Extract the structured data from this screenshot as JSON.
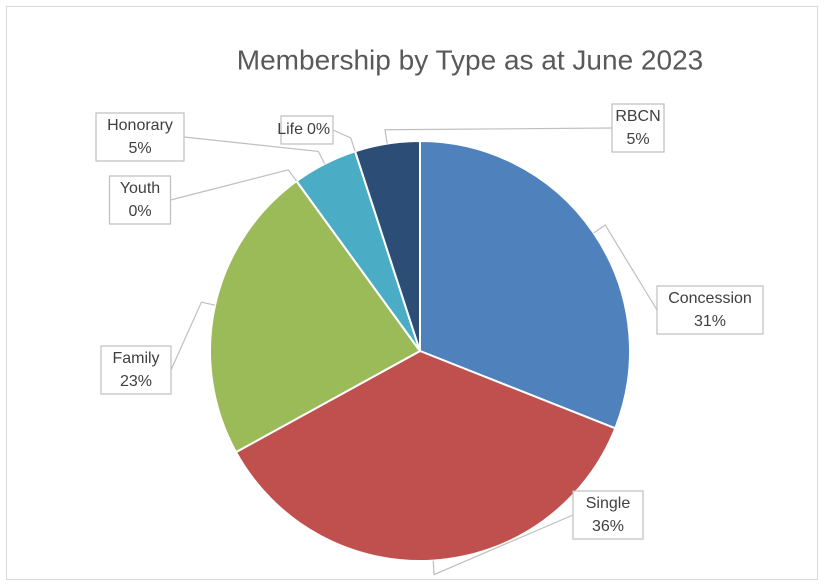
{
  "chart_data": {
    "type": "pie",
    "title": "Membership by Type as at June 2023",
    "categories": [
      "Concession",
      "Single",
      "Family",
      "Youth",
      "Honorary",
      "Life",
      "RBCN"
    ],
    "values": [
      31,
      36,
      23,
      0,
      5,
      0,
      5
    ],
    "value_labels": [
      "31%",
      "36%",
      "23%",
      "0%",
      "5%",
      "0%",
      "5%"
    ],
    "colors": [
      "#4f81bd",
      "#c0504d",
      "#9bbb59",
      "#8064a2",
      "#4bacc6",
      "#f79646",
      "#2c4d75"
    ]
  }
}
